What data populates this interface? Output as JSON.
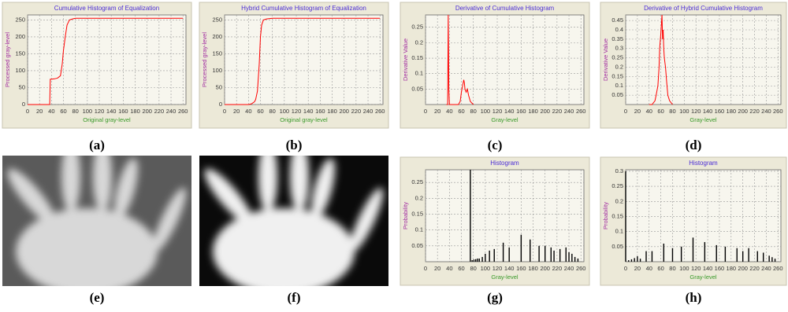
{
  "panel_labels": [
    "(a)",
    "(b)",
    "(c)",
    "(d)",
    "(e)",
    "(f)",
    "(g)",
    "(h)"
  ],
  "chart_data": [
    {
      "type": "line",
      "title": "Cumulative Histogram of Equalization",
      "xlabel": "Original gray-level",
      "ylabel": "Processed gray-level",
      "x": [
        0,
        37,
        38,
        40,
        45,
        50,
        55,
        58,
        60,
        63,
        66,
        70,
        75,
        80,
        260
      ],
      "values": [
        0,
        0,
        75,
        75,
        76,
        78,
        85,
        120,
        160,
        200,
        235,
        250,
        253,
        255,
        255
      ],
      "color": "#ff0000",
      "xlim": [
        0,
        265
      ],
      "xticks": [
        0,
        20,
        40,
        60,
        80,
        100,
        120,
        140,
        160,
        180,
        200,
        220,
        240,
        260
      ],
      "ylim": [
        0,
        265
      ],
      "yticks": [
        0,
        50,
        100,
        150,
        200,
        250
      ],
      "grid": true
    },
    {
      "type": "line",
      "title": "Hybrid Cumulative Histogram of Equalization",
      "xlabel": "Original gray-level",
      "ylabel": "Processed gray-level",
      "x": [
        0,
        40,
        45,
        50,
        52,
        55,
        58,
        60,
        62,
        65,
        70,
        80,
        260
      ],
      "values": [
        0,
        0,
        2,
        8,
        15,
        40,
        120,
        200,
        235,
        250,
        253,
        255,
        255
      ],
      "color": "#ff0000",
      "xlim": [
        0,
        265
      ],
      "xticks": [
        0,
        20,
        40,
        60,
        80,
        100,
        120,
        140,
        160,
        180,
        200,
        220,
        240,
        260
      ],
      "ylim": [
        0,
        265
      ],
      "yticks": [
        0,
        50,
        100,
        150,
        200,
        250
      ],
      "grid": true
    },
    {
      "type": "line",
      "title": "Derivative of Cumulative Histogram",
      "xlabel": "Gray-level",
      "ylabel": "Derivative Value",
      "x": [
        35,
        37,
        38,
        39,
        40,
        50,
        55,
        58,
        60,
        62,
        64,
        65,
        66,
        68,
        70,
        72,
        75,
        80
      ],
      "values": [
        0,
        0,
        0.29,
        0.05,
        0,
        0,
        0,
        0.01,
        0.04,
        0.06,
        0.08,
        0.07,
        0.05,
        0.04,
        0.05,
        0.03,
        0.01,
        0
      ],
      "color": "#ff0000",
      "xlim": [
        0,
        265
      ],
      "xticks": [
        0,
        20,
        40,
        60,
        80,
        100,
        120,
        140,
        160,
        180,
        200,
        220,
        240,
        260
      ],
      "ylim": [
        0,
        0.29
      ],
      "yticks": [
        0.05,
        0.1,
        0.15,
        0.2,
        0.25
      ],
      "grid": true
    },
    {
      "type": "line",
      "title": "Derivative of Hybrid Cumulative Histogram",
      "xlabel": "Gray-level",
      "ylabel": "Derivative Value",
      "x": [
        40,
        45,
        50,
        52,
        55,
        57,
        58,
        60,
        62,
        63,
        64,
        65,
        66,
        68,
        70,
        72,
        75,
        80
      ],
      "values": [
        0,
        0,
        0.02,
        0.05,
        0.1,
        0.2,
        0.3,
        0.38,
        0.48,
        0.35,
        0.4,
        0.3,
        0.25,
        0.2,
        0.12,
        0.05,
        0.02,
        0
      ],
      "color": "#ff0000",
      "xlim": [
        0,
        265
      ],
      "xticks": [
        0,
        20,
        40,
        60,
        80,
        100,
        120,
        140,
        160,
        180,
        200,
        220,
        240,
        260
      ],
      "ylim": [
        0,
        0.48
      ],
      "yticks": [
        0.05,
        0.1,
        0.15,
        0.2,
        0.25,
        0.3,
        0.35,
        0.4,
        0.45
      ],
      "grid": true
    },
    {
      "type": "bar",
      "title": "Histogram",
      "xlabel": "Gray-level",
      "ylabel": "Probability",
      "x": [
        75,
        78,
        81,
        84,
        87,
        90,
        95,
        100,
        107,
        115,
        130,
        140,
        160,
        175,
        190,
        200,
        210,
        215,
        225,
        235,
        240,
        245,
        250,
        255
      ],
      "values": [
        0.29,
        0.005,
        0.007,
        0.008,
        0.01,
        0.01,
        0.015,
        0.025,
        0.035,
        0.04,
        0.06,
        0.045,
        0.085,
        0.07,
        0.05,
        0.05,
        0.045,
        0.035,
        0.04,
        0.045,
        0.03,
        0.025,
        0.015,
        0.01
      ],
      "color": "#000000",
      "xlim": [
        0,
        265
      ],
      "xticks": [
        0,
        20,
        40,
        60,
        80,
        100,
        120,
        140,
        160,
        180,
        200,
        220,
        240,
        260
      ],
      "ylim": [
        0,
        0.29
      ],
      "yticks": [
        0.05,
        0.1,
        0.15,
        0.2,
        0.25
      ],
      "grid": true
    },
    {
      "type": "bar",
      "title": "Histogram",
      "xlabel": "Gray-level",
      "ylabel": "Probability",
      "x": [
        0,
        5,
        10,
        15,
        20,
        25,
        35,
        45,
        65,
        80,
        95,
        115,
        135,
        155,
        170,
        190,
        200,
        210,
        225,
        235,
        245,
        250,
        255
      ],
      "values": [
        0.3,
        0.005,
        0.008,
        0.012,
        0.018,
        0.01,
        0.035,
        0.035,
        0.06,
        0.045,
        0.05,
        0.08,
        0.065,
        0.055,
        0.05,
        0.045,
        0.035,
        0.045,
        0.035,
        0.03,
        0.02,
        0.015,
        0.01
      ],
      "color": "#000000",
      "xlim": [
        0,
        265
      ],
      "xticks": [
        0,
        20,
        40,
        60,
        80,
        100,
        120,
        140,
        160,
        180,
        200,
        220,
        240,
        260
      ],
      "ylim": [
        0,
        0.305
      ],
      "yticks": [
        0.05,
        0.1,
        0.15,
        0.2,
        0.25,
        0.3
      ],
      "grid": true
    }
  ]
}
